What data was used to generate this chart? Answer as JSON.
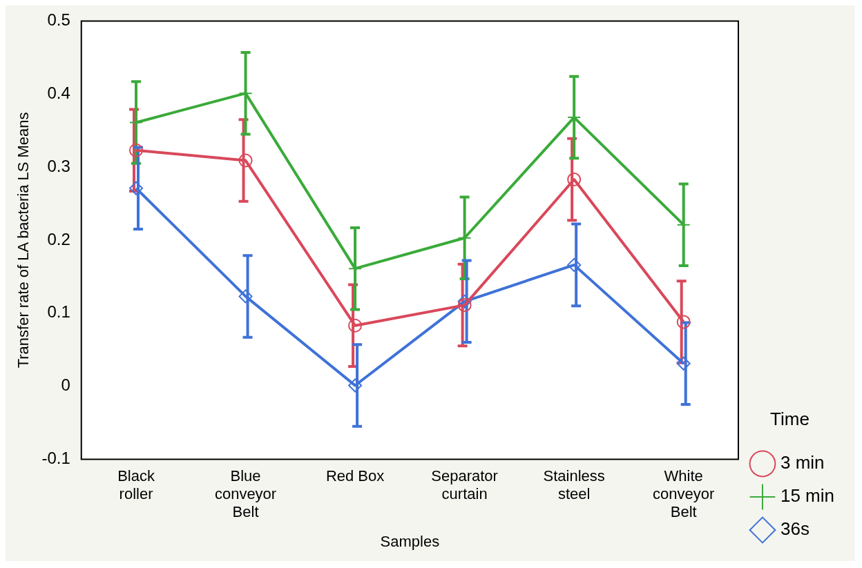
{
  "chart_data": {
    "type": "line",
    "xlabel": "Samples",
    "ylabel": "Transfer rate of LA bacteria LS Means",
    "categories": [
      "Black roller",
      "Blue conveyor Belt",
      "Red Box",
      "Separator curtain",
      "Stainless steel",
      "White conveyor Belt"
    ],
    "series": [
      {
        "name": "3 min",
        "color": "#d9485a",
        "marker": "circle",
        "values": [
          0.323,
          0.309,
          0.083,
          0.111,
          0.283,
          0.088
        ],
        "errors": [
          0.056,
          0.056,
          0.056,
          0.056,
          0.056,
          0.056
        ]
      },
      {
        "name": "15 min",
        "color": "#3aaa3a",
        "marker": "cross",
        "values": [
          0.361,
          0.401,
          0.161,
          0.203,
          0.368,
          0.221
        ],
        "errors": [
          0.056,
          0.056,
          0.056,
          0.056,
          0.056,
          0.056
        ]
      },
      {
        "name": "36s",
        "color": "#3f72d8",
        "marker": "diamond",
        "values": [
          0.271,
          0.123,
          0.001,
          0.116,
          0.166,
          0.031
        ],
        "errors": [
          0.056,
          0.056,
          0.056,
          0.056,
          0.056,
          0.056
        ]
      }
    ],
    "ylim": [
      -0.1,
      0.5
    ],
    "yticks": [
      -0.1,
      0,
      0.1,
      0.2,
      0.3,
      0.4,
      0.5
    ],
    "grid": false,
    "legend": "bottom right",
    "legend_title": "Time",
    "line_style": "solid"
  }
}
